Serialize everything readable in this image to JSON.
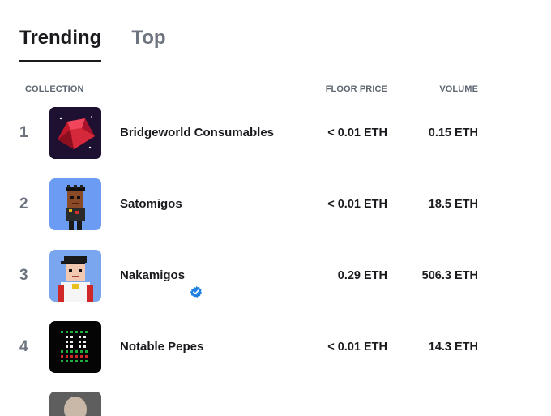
{
  "tabs": [
    {
      "label": "Trending",
      "active": true
    },
    {
      "label": "Top",
      "active": false
    }
  ],
  "table": {
    "headers": {
      "collection": "COLLECTION",
      "floor": "FLOOR PRICE",
      "volume": "VOLUME"
    },
    "rows": [
      {
        "rank": "1",
        "name": "Bridgeworld Consumables",
        "floor": "< 0.01 ETH",
        "volume": "0.15 ETH",
        "verified": false,
        "thumb_icon": "red-gem-icon"
      },
      {
        "rank": "2",
        "name": "Satomigos",
        "floor": "< 0.01 ETH",
        "volume": "18.5 ETH",
        "verified": false,
        "thumb_icon": "pixel-character-icon"
      },
      {
        "rank": "3",
        "name": "Nakamigos",
        "floor": "0.29 ETH",
        "volume": "506.3 ETH",
        "verified": true,
        "thumb_icon": "pixel-cap-character-icon"
      },
      {
        "rank": "4",
        "name": "Notable Pepes",
        "floor": "< 0.01 ETH",
        "volume": "14.3 ETH",
        "verified": false,
        "thumb_icon": "pixel-grid-icon"
      }
    ]
  },
  "colors": {
    "accent": "#1b1b1f",
    "muted": "#6d7480",
    "verified": "#2081e2"
  }
}
